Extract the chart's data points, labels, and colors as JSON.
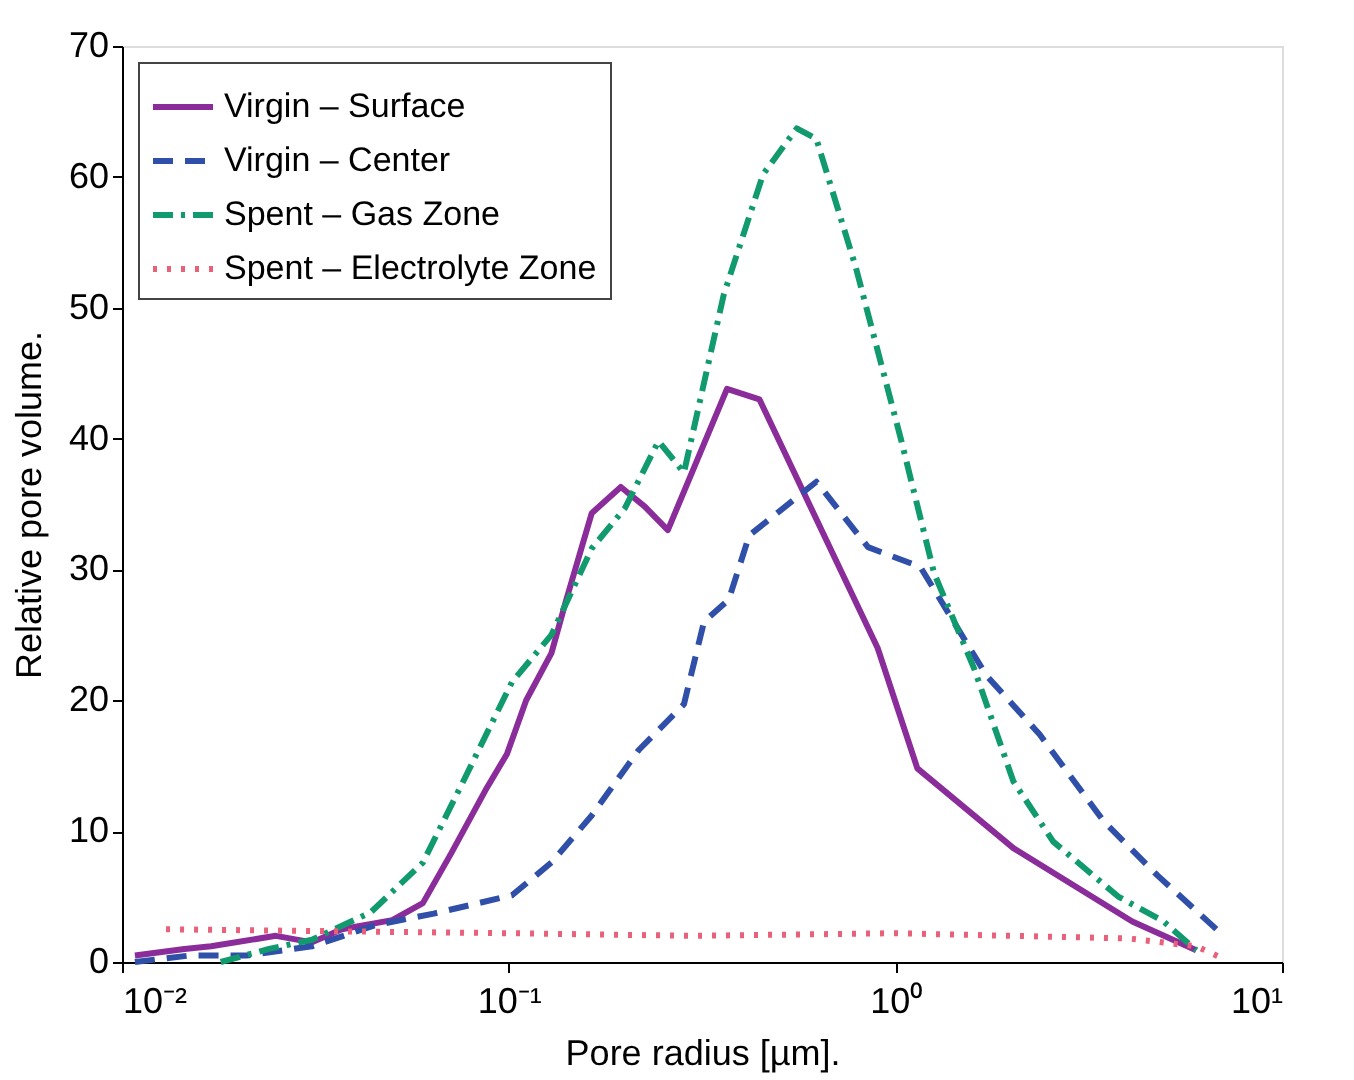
{
  "chart_data": {
    "type": "line",
    "xlabel": "Pore radius [µm].",
    "ylabel": "Relative pore volume.",
    "log": "x",
    "xlim": [
      0.01,
      10
    ],
    "xticks": [
      {
        "value": 0.01,
        "label": "10⁻²"
      },
      {
        "value": 0.1,
        "label": "10⁻¹"
      },
      {
        "value": 1,
        "label": "10⁰"
      },
      {
        "value": 10,
        "label": "10¹"
      }
    ],
    "ylim": [
      0,
      70
    ],
    "yticks": [
      0,
      10,
      20,
      30,
      40,
      50,
      60,
      70
    ],
    "grid": false,
    "legend": "top left",
    "series": [
      {
        "name": "Virgin – Surface",
        "color": "#8b2c9b",
        "line_style": "solid",
        "x": [
          0.0108,
          0.0145,
          0.017,
          0.025,
          0.031,
          0.037,
          0.05,
          0.06,
          0.071,
          0.087,
          0.099,
          0.111,
          0.129,
          0.141,
          0.164,
          0.195,
          0.225,
          0.258,
          0.367,
          0.445,
          0.9,
          1.14,
          2.02,
          4.1,
          6.0
        ],
        "values": [
          0.5,
          1.0,
          1.2,
          2.0,
          1.5,
          2.5,
          3.2,
          4.5,
          8.3,
          13.1,
          15.9,
          20,
          23.6,
          27.7,
          34.3,
          36.3,
          34.8,
          33,
          43.8,
          43,
          24,
          14.8,
          8.7,
          3.1,
          0.9
        ]
      },
      {
        "name": "Virgin – Center",
        "color": "#2f4fa8",
        "line_style": "dashed",
        "x": [
          0.0108,
          0.015,
          0.021,
          0.031,
          0.045,
          0.064,
          0.102,
          0.129,
          0.164,
          0.217,
          0.284,
          0.32,
          0.371,
          0.419,
          0.625,
          0.85,
          1.16,
          1.72,
          2.36,
          3.47,
          4.77,
          6.77
        ],
        "values": [
          0,
          0.5,
          0.5,
          1.2,
          2.8,
          3.7,
          5.1,
          7.6,
          11.2,
          16.2,
          19.7,
          26,
          27.7,
          32.6,
          36.7,
          31.7,
          30.2,
          21.9,
          17.4,
          10.7,
          6.6,
          2.5
        ]
      },
      {
        "name": "Spent – Gas Zone",
        "color": "#119a6e",
        "line_style": "dashdot",
        "x": [
          0.018,
          0.024,
          0.031,
          0.044,
          0.06,
          0.076,
          0.102,
          0.129,
          0.164,
          0.2,
          0.244,
          0.284,
          0.36,
          0.455,
          0.556,
          0.625,
          0.79,
          1.035,
          1.26,
          1.6,
          2.02,
          2.56,
          3.77,
          4.94,
          6.0
        ],
        "values": [
          0,
          1,
          1.7,
          3.8,
          7.6,
          13.7,
          21.4,
          25,
          31.6,
          34.7,
          39.8,
          37.4,
          51,
          60.2,
          63.7,
          62.9,
          53.1,
          39.9,
          29.7,
          22.4,
          13.8,
          9.2,
          5.0,
          3.1,
          0.9
        ]
      },
      {
        "name": "Spent – Electrolyte Zone",
        "color": "#e8607a",
        "line_style": "dotted",
        "x": [
          0.013,
          0.05,
          0.1,
          0.3,
          1,
          2,
          4,
          6,
          7
        ],
        "values": [
          2.5,
          2.3,
          2.2,
          2.0,
          2.2,
          2.0,
          1.8,
          1.2,
          0.3
        ]
      }
    ]
  }
}
